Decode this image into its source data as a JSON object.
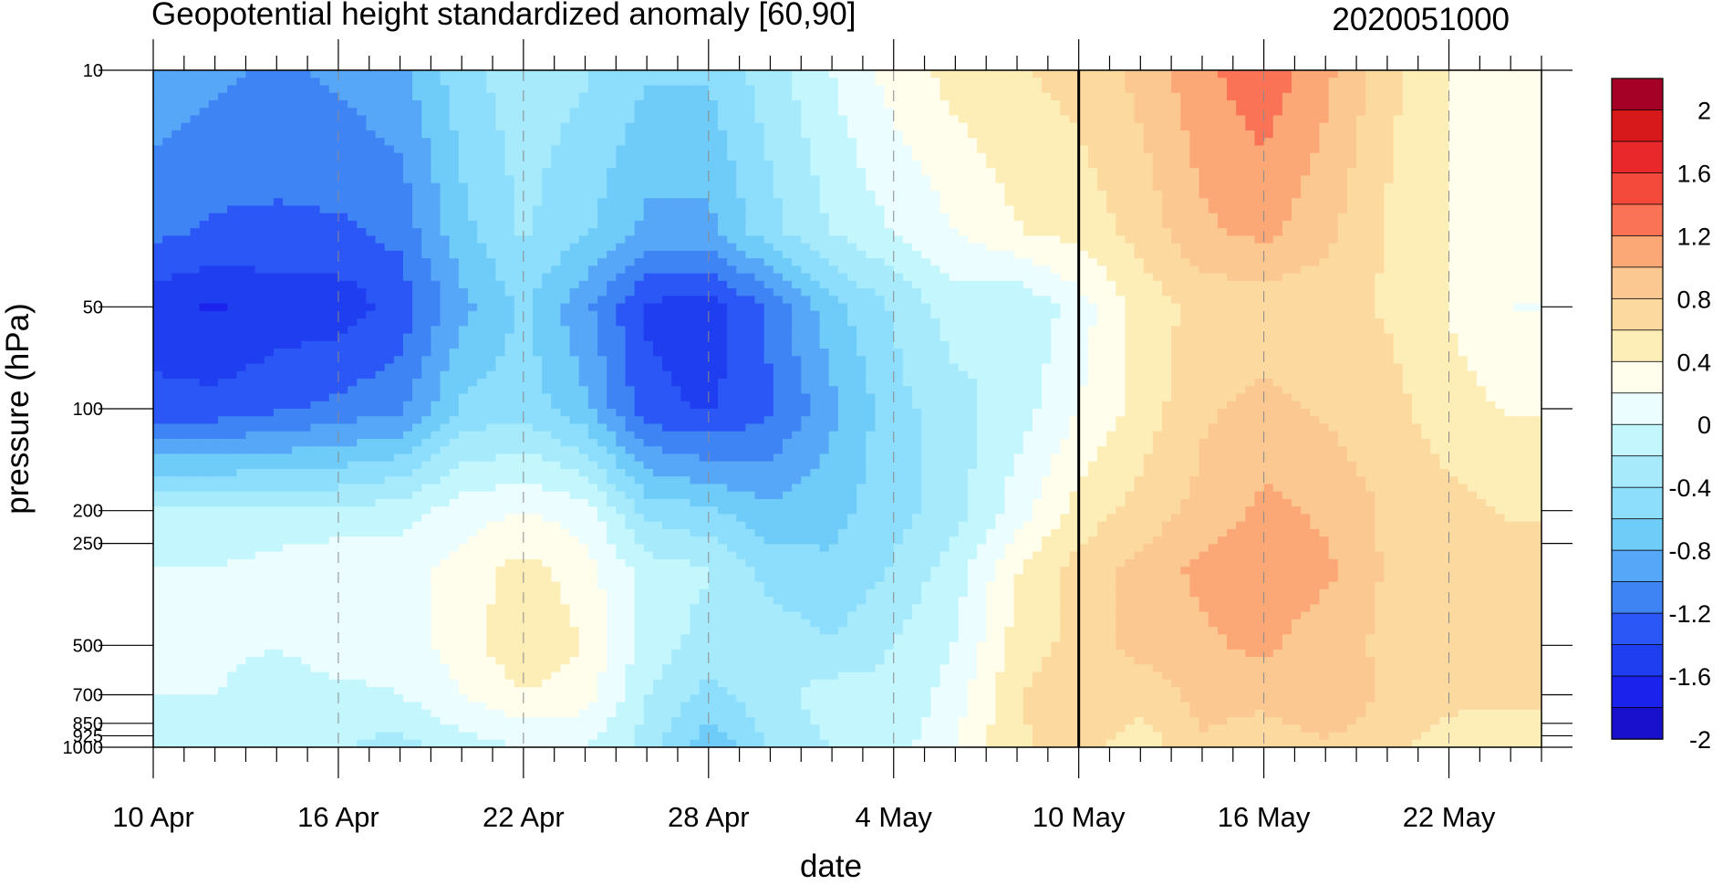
{
  "chart_data": {
    "type": "heatmap",
    "title": "Geopotential height standardized anomaly [60,90]",
    "subtitle_right": "2020051000",
    "xlabel": "date",
    "ylabel": "pressure (hPa)",
    "x_ticks": [
      "10 Apr",
      "16 Apr",
      "22 Apr",
      "28 Apr",
      "4 May",
      "10 May",
      "16 May",
      "22 May"
    ],
    "x_tick_day_index": [
      0,
      6,
      12,
      18,
      24,
      30,
      36,
      42
    ],
    "x_range_days": [
      0,
      45
    ],
    "y_scale": "log",
    "y_ticks": [
      10,
      50,
      100,
      200,
      250,
      500,
      700,
      850,
      925,
      1000
    ],
    "y_tick_labels": [
      "10",
      "50",
      "100",
      "200",
      "250",
      "500",
      "700",
      "850",
      "925",
      "1000"
    ],
    "y_range": [
      10,
      1000
    ],
    "forecast_start": "10 May",
    "colorbar": {
      "labels": [
        "2",
        "1.6",
        "1.2",
        "0.8",
        "0.4",
        "0",
        "-0.4",
        "-0.8",
        "-1.2",
        "-1.6",
        "-2"
      ],
      "colors_top_to_bottom": [
        "#a50026",
        "#d7191c",
        "#e8282b",
        "#f44a3c",
        "#fa7356",
        "#fba776",
        "#fcc892",
        "#fcd99e",
        "#fdeeb8",
        "#fffdeb",
        "#ebfdff",
        "#c3f6fd",
        "#a6eafc",
        "#8ddefc",
        "#6fcbf8",
        "#56a7f7",
        "#3f84f5",
        "#2a57f5",
        "#1e3ef0",
        "#1a22eb",
        "#1810cc"
      ]
    },
    "data": {
      "days": [
        0,
        2,
        4,
        6,
        8,
        10,
        12,
        14,
        16,
        18,
        20,
        22,
        24,
        26,
        28,
        30,
        32,
        34,
        36,
        38,
        40,
        42,
        44,
        45
      ],
      "levels": [
        10,
        30,
        50,
        100,
        200,
        300,
        500,
        700,
        1000
      ],
      "values": [
        [
          -1.0,
          -1.1,
          -1.2,
          -1.1,
          -1.0,
          -0.6,
          -0.4,
          -0.5,
          -0.7,
          -0.7,
          -0.4,
          -0.1,
          0.2,
          0.4,
          0.5,
          0.6,
          0.8,
          1.1,
          1.3,
          1.0,
          0.6,
          0.3,
          0.2,
          0.2
        ],
        [
          -1.3,
          -1.4,
          -1.4,
          -1.4,
          -1.3,
          -0.8,
          -0.5,
          -0.7,
          -1.0,
          -1.0,
          -0.6,
          -0.3,
          -0.1,
          0.1,
          0.3,
          0.4,
          0.6,
          0.9,
          1.0,
          0.8,
          0.5,
          0.3,
          0.2,
          0.2
        ],
        [
          -1.7,
          -1.8,
          -1.7,
          -1.7,
          -1.5,
          -1.0,
          -0.7,
          -1.1,
          -1.6,
          -1.7,
          -1.3,
          -0.8,
          -0.5,
          -0.2,
          -0.3,
          0.0,
          0.4,
          0.6,
          0.6,
          0.6,
          0.5,
          0.3,
          0.1,
          0.1
        ],
        [
          -1.5,
          -1.5,
          -1.4,
          -1.3,
          -1.2,
          -0.7,
          -0.6,
          -0.9,
          -1.5,
          -1.6,
          -1.4,
          -1.0,
          -0.6,
          -0.4,
          -0.2,
          0.1,
          0.4,
          0.7,
          0.8,
          0.7,
          0.6,
          0.4,
          0.3,
          0.3
        ],
        [
          -0.3,
          -0.3,
          -0.3,
          -0.3,
          -0.2,
          0.0,
          0.1,
          0.0,
          -0.6,
          -0.7,
          -0.9,
          -0.8,
          -0.6,
          -0.4,
          0.0,
          0.4,
          0.6,
          0.8,
          1.0,
          0.9,
          0.7,
          0.6,
          0.5,
          0.5
        ],
        [
          -0.1,
          -0.1,
          0.0,
          0.1,
          0.0,
          0.2,
          0.4,
          0.2,
          -0.2,
          -0.3,
          -0.6,
          -0.7,
          -0.5,
          -0.2,
          0.3,
          0.6,
          0.8,
          1.0,
          1.1,
          1.0,
          0.7,
          0.6,
          0.6,
          0.6
        ],
        [
          0.1,
          0.0,
          -0.1,
          0.1,
          0.0,
          0.2,
          0.5,
          0.3,
          -0.2,
          -0.4,
          -0.4,
          -0.5,
          -0.3,
          -0.1,
          0.4,
          0.6,
          0.8,
          0.9,
          1.0,
          0.8,
          0.7,
          0.7,
          0.6,
          0.6
        ],
        [
          -0.1,
          -0.1,
          -0.3,
          -0.2,
          -0.1,
          0.1,
          0.3,
          0.2,
          -0.3,
          -0.6,
          -0.4,
          -0.2,
          -0.3,
          0.0,
          0.5,
          0.7,
          0.6,
          0.8,
          0.8,
          0.9,
          0.7,
          0.6,
          0.6,
          0.6
        ],
        [
          -0.2,
          -0.2,
          -0.3,
          -0.3,
          -0.4,
          -0.2,
          -0.1,
          -0.1,
          -0.4,
          -0.9,
          -0.5,
          -0.3,
          -0.2,
          0.1,
          0.5,
          0.6,
          0.4,
          0.7,
          0.6,
          0.7,
          0.6,
          0.4,
          0.3,
          0.3
        ]
      ]
    }
  }
}
